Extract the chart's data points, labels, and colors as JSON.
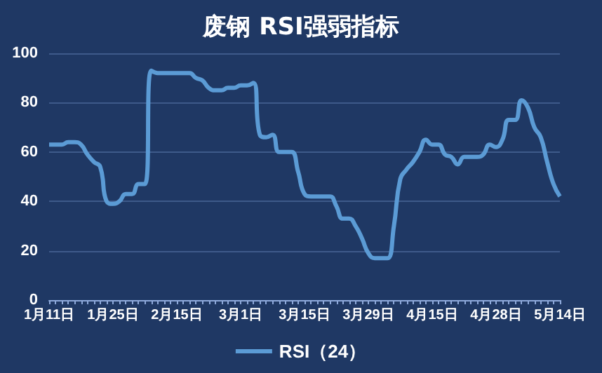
{
  "chart_data": {
    "type": "line",
    "title": "废钢 RSI强弱指标",
    "categories": [
      "1月11日",
      null,
      null,
      null,
      null,
      null,
      null,
      null,
      null,
      null,
      "1月25日",
      null,
      null,
      null,
      null,
      null,
      null,
      null,
      null,
      null,
      "2月15日",
      null,
      null,
      null,
      null,
      null,
      null,
      null,
      null,
      null,
      "3月1日",
      null,
      null,
      null,
      null,
      null,
      null,
      null,
      null,
      null,
      "3月15日",
      null,
      null,
      null,
      null,
      null,
      null,
      null,
      null,
      null,
      "3月29日",
      null,
      null,
      null,
      null,
      null,
      null,
      null,
      null,
      null,
      "4月15日",
      null,
      null,
      null,
      null,
      null,
      null,
      null,
      null,
      null,
      "4月28日",
      null,
      null,
      null,
      null,
      null,
      null,
      null,
      null,
      null,
      "5月14日"
    ],
    "series": [
      {
        "name": "RSI（24）",
        "color": "#5b9bd5",
        "values": [
          63,
          63,
          63,
          64,
          64,
          63,
          59,
          56,
          54,
          40,
          39,
          40,
          43,
          43,
          47,
          47,
          93,
          92,
          92,
          92,
          92,
          92,
          92,
          90,
          89,
          86,
          85,
          85,
          86,
          86,
          87,
          87,
          88,
          67,
          66,
          67,
          60,
          60,
          60,
          52,
          43,
          42,
          42,
          42,
          42,
          38,
          33,
          33,
          30,
          25,
          19,
          17,
          17,
          17,
          30,
          49,
          53,
          56,
          60,
          65,
          63,
          63,
          59,
          58,
          55,
          58,
          58,
          58,
          59,
          63,
          62,
          65,
          73,
          73,
          81,
          78,
          70,
          66,
          56,
          47,
          42
        ]
      }
    ],
    "ylim": [
      0,
      100
    ],
    "yticks": [
      0,
      20,
      40,
      60,
      80,
      100
    ],
    "grid": "y",
    "legend": "bottom",
    "marker": "none"
  }
}
